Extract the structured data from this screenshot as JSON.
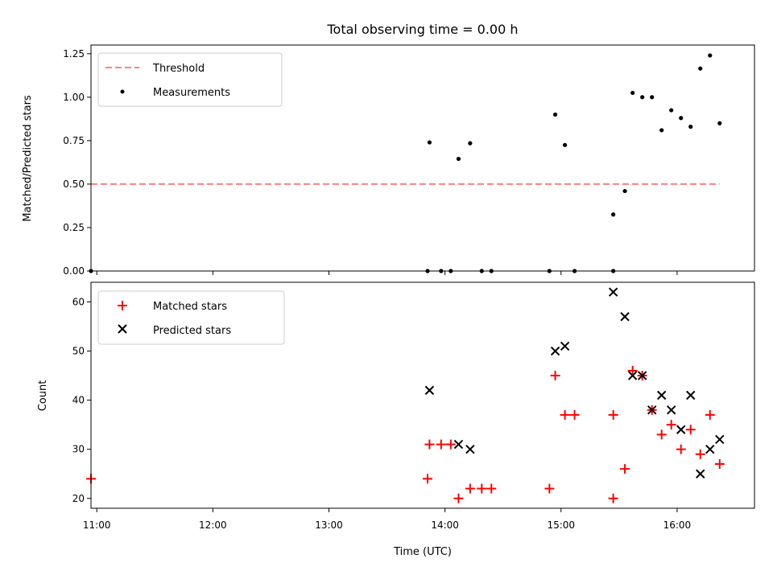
{
  "chart_data": [
    {
      "type": "scatter",
      "title": "Total observing time = 0.00 h",
      "xlabel": "",
      "ylabel": "Matched/Predicted stars",
      "xlim": [
        "10:57",
        "16:40"
      ],
      "ylim": [
        0,
        1.3
      ],
      "yticks": [
        "0.00",
        "0.25",
        "0.50",
        "0.75",
        "1.00",
        "1.25"
      ],
      "legend": {
        "position": "top-left",
        "entries": [
          "Threshold",
          "Measurements"
        ]
      },
      "threshold": {
        "name": "Threshold",
        "y": 0.5,
        "x_start": "10:57",
        "x_end": "16:22",
        "color": "#ff7f7f",
        "style": "dashed"
      },
      "series": [
        {
          "name": "Measurements",
          "color": "#000000",
          "marker": "dot",
          "points": [
            [
              "10:57",
              0.0
            ],
            [
              "13:51",
              0.0
            ],
            [
              "13:58",
              0.0
            ],
            [
              "14:03",
              0.0
            ],
            [
              "13:52",
              0.74
            ],
            [
              "14:07",
              0.645
            ],
            [
              "14:13",
              0.735
            ],
            [
              "14:19",
              0.0
            ],
            [
              "14:24",
              0.0
            ],
            [
              "14:54",
              0.0
            ],
            [
              "14:57",
              0.9
            ],
            [
              "15:02",
              0.725
            ],
            [
              "15:07",
              0.0
            ],
            [
              "15:27",
              0.0
            ],
            [
              "15:27",
              0.325
            ],
            [
              "15:33",
              0.46
            ],
            [
              "15:37",
              1.025
            ],
            [
              "15:42",
              1.0
            ],
            [
              "15:47",
              1.0
            ],
            [
              "15:52",
              0.81
            ],
            [
              "15:57",
              0.925
            ],
            [
              "16:02",
              0.88
            ],
            [
              "16:07",
              0.83
            ],
            [
              "16:12",
              1.165
            ],
            [
              "16:17",
              1.24
            ],
            [
              "16:22",
              0.85
            ]
          ]
        }
      ]
    },
    {
      "type": "scatter",
      "title": "",
      "xlabel": "Time (UTC)",
      "ylabel": "Count",
      "xlim": [
        "10:57",
        "16:40"
      ],
      "ylim": [
        18,
        64
      ],
      "xticks": [
        "11:00",
        "12:00",
        "13:00",
        "14:00",
        "15:00",
        "16:00"
      ],
      "yticks": [
        "20",
        "30",
        "40",
        "50",
        "60"
      ],
      "legend": {
        "position": "top-left",
        "entries": [
          "Matched stars",
          "Predicted stars"
        ]
      },
      "series": [
        {
          "name": "Matched stars",
          "color": "#ff0000",
          "marker": "plus",
          "points": [
            [
              "10:57",
              24
            ],
            [
              "13:51",
              24
            ],
            [
              "13:52",
              31
            ],
            [
              "13:58",
              31
            ],
            [
              "14:03",
              31
            ],
            [
              "14:07",
              20
            ],
            [
              "14:13",
              22
            ],
            [
              "14:19",
              22
            ],
            [
              "14:24",
              22
            ],
            [
              "14:54",
              22
            ],
            [
              "14:57",
              45
            ],
            [
              "15:02",
              37
            ],
            [
              "15:07",
              37
            ],
            [
              "15:27",
              37
            ],
            [
              "15:27",
              20
            ],
            [
              "15:33",
              26
            ],
            [
              "15:37",
              46
            ],
            [
              "15:42",
              45
            ],
            [
              "15:47",
              38
            ],
            [
              "15:52",
              33
            ],
            [
              "15:57",
              35
            ],
            [
              "16:02",
              30
            ],
            [
              "16:07",
              34
            ],
            [
              "16:12",
              29
            ],
            [
              "16:17",
              37
            ],
            [
              "16:22",
              27
            ]
          ]
        },
        {
          "name": "Predicted stars",
          "color": "#000000",
          "marker": "x",
          "points": [
            [
              "13:52",
              42
            ],
            [
              "14:07",
              31
            ],
            [
              "14:13",
              30
            ],
            [
              "14:57",
              50
            ],
            [
              "15:02",
              51
            ],
            [
              "15:27",
              62
            ],
            [
              "15:33",
              57
            ],
            [
              "15:37",
              45
            ],
            [
              "15:42",
              45
            ],
            [
              "15:47",
              38
            ],
            [
              "15:52",
              41
            ],
            [
              "15:57",
              38
            ],
            [
              "16:02",
              34
            ],
            [
              "16:07",
              41
            ],
            [
              "16:12",
              25
            ],
            [
              "16:17",
              30
            ],
            [
              "16:22",
              32
            ]
          ]
        }
      ]
    }
  ]
}
